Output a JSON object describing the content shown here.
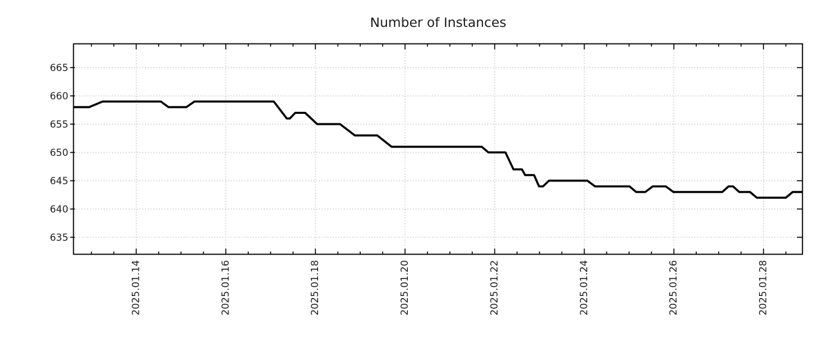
{
  "chart_data": {
    "type": "line",
    "title": "Number of Instances",
    "xlabel": "",
    "ylabel": "",
    "x_unit": "day of January 2025 (decimal)",
    "xlim": [
      12.6,
      28.87
    ],
    "ylim": [
      632.0,
      669.2
    ],
    "x_major_ticks": [
      14,
      16,
      18,
      20,
      22,
      24,
      26,
      28
    ],
    "x_tick_labels": [
      "2025.01.14",
      "2025.01.16",
      "2025.01.18",
      "2025.01.20",
      "2025.01.22",
      "2025.01.24",
      "2025.01.26",
      "2025.01.28"
    ],
    "x_minor_tick_step": 0.5,
    "y_ticks": [
      635,
      640,
      645,
      650,
      655,
      660,
      665
    ],
    "y_tick_labels": [
      "635",
      "640",
      "645",
      "650",
      "655",
      "660",
      "665"
    ],
    "grid": "dotted-both-axes-at-major-ticks",
    "legend_position": "none",
    "colors": {
      "line": "#000000",
      "grid": "#a6a6a6",
      "axis": "#000000",
      "text": "#1a1a1a",
      "background": "#ffffff"
    },
    "series": [
      {
        "name": "Number of Instances",
        "color": "#000000",
        "points": [
          [
            12.6,
            658
          ],
          [
            12.95,
            658
          ],
          [
            13.25,
            659
          ],
          [
            14.55,
            659
          ],
          [
            14.72,
            658
          ],
          [
            15.12,
            658
          ],
          [
            15.3,
            659
          ],
          [
            17.07,
            659
          ],
          [
            17.36,
            656
          ],
          [
            17.43,
            656
          ],
          [
            17.55,
            657
          ],
          [
            17.77,
            657
          ],
          [
            18.04,
            655
          ],
          [
            18.55,
            655
          ],
          [
            18.88,
            653
          ],
          [
            19.38,
            653
          ],
          [
            19.7,
            651
          ],
          [
            21.71,
            651
          ],
          [
            21.86,
            650
          ],
          [
            22.24,
            650
          ],
          [
            22.42,
            647
          ],
          [
            22.61,
            647
          ],
          [
            22.68,
            646
          ],
          [
            22.88,
            646
          ],
          [
            22.99,
            644
          ],
          [
            23.08,
            644
          ],
          [
            23.21,
            645
          ],
          [
            24.07,
            645
          ],
          [
            24.24,
            644
          ],
          [
            25.01,
            644
          ],
          [
            25.16,
            643
          ],
          [
            25.36,
            643
          ],
          [
            25.53,
            644
          ],
          [
            25.82,
            644
          ],
          [
            25.99,
            643
          ],
          [
            27.08,
            643
          ],
          [
            27.22,
            644
          ],
          [
            27.32,
            644
          ],
          [
            27.46,
            643
          ],
          [
            27.7,
            643
          ],
          [
            27.85,
            642
          ],
          [
            28.5,
            642
          ],
          [
            28.65,
            643
          ],
          [
            28.87,
            643
          ]
        ]
      }
    ]
  }
}
